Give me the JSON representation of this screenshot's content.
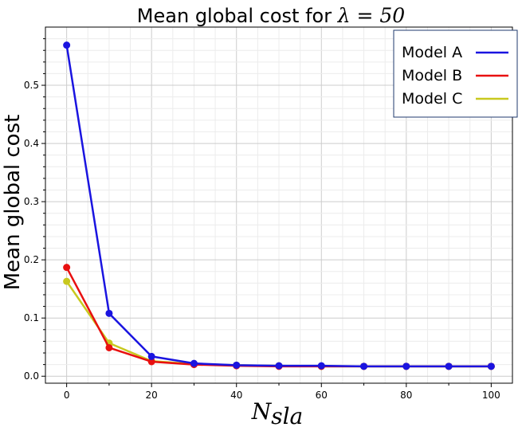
{
  "chart_data": {
    "type": "line",
    "title_prefix": "Mean global cost for ",
    "title_math": "λ = 50",
    "xlabel": "N",
    "xlabel_subscript": "sla",
    "ylabel": "Mean global cost",
    "xlim": [
      -5,
      105
    ],
    "ylim": [
      -0.012,
      0.6
    ],
    "xticks": [
      0,
      20,
      40,
      60,
      80,
      100
    ],
    "yticks": [
      0.0,
      0.1,
      0.2,
      0.3,
      0.4,
      0.5
    ],
    "ytick_labels": [
      "0.0",
      "0.1",
      "0.2",
      "0.3",
      "0.4",
      "0.5"
    ],
    "x": [
      0,
      10,
      20,
      30,
      40,
      50,
      60,
      70,
      80,
      90,
      100
    ],
    "grid": true,
    "legend_position": "top-right",
    "series": [
      {
        "name": "Model C",
        "color": "#c8c81e",
        "values": [
          0.163,
          0.057,
          0.026,
          0.021,
          0.019,
          0.018,
          0.017,
          0.017,
          0.017,
          0.017,
          0.017
        ]
      },
      {
        "name": "Model B",
        "color": "#e81010",
        "values": [
          0.187,
          0.049,
          0.025,
          0.02,
          0.018,
          0.017,
          0.017,
          0.017,
          0.017,
          0.017,
          0.017
        ]
      },
      {
        "name": "Model A",
        "color": "#1a14e0",
        "values": [
          0.569,
          0.108,
          0.034,
          0.022,
          0.019,
          0.018,
          0.018,
          0.017,
          0.017,
          0.017,
          0.017
        ]
      }
    ],
    "legend_order": [
      "Model A",
      "Model B",
      "Model C"
    ]
  }
}
